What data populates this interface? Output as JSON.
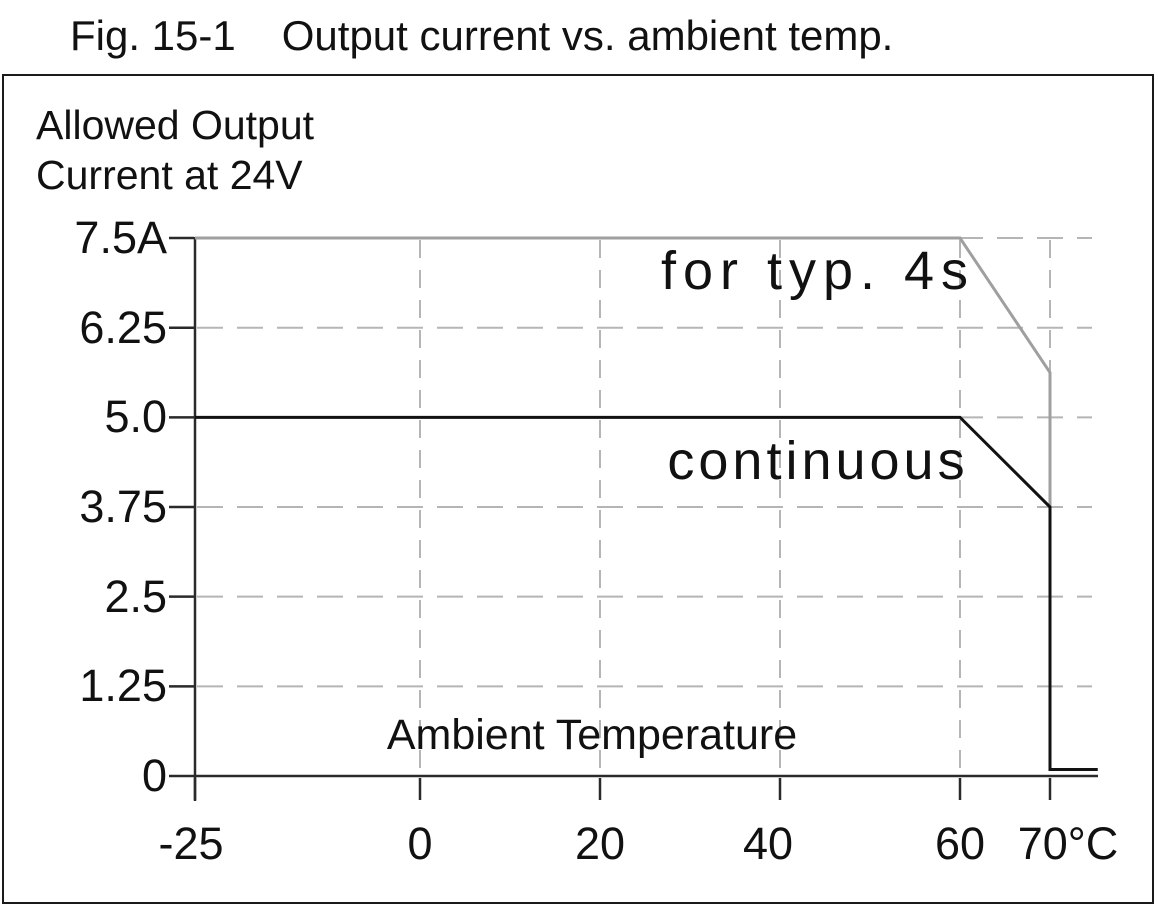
{
  "figure": {
    "fig_label": "Fig. 15-1",
    "title": "Output current vs. ambient temp."
  },
  "chart_data": {
    "type": "line",
    "title": "Fig. 15-1 Output current vs. ambient temp.",
    "ylabel": "Allowed Output Current at 24V",
    "ylabel_lines": [
      "Allowed Output",
      "Current at 24V"
    ],
    "xlabel": "Ambient Temperature",
    "x_unit": "°C",
    "y_unit": "A",
    "xlim": [
      -25,
      75.3
    ],
    "ylim": [
      0,
      7.5
    ],
    "grid": "dashed",
    "legend_position": "inline-labels",
    "y_ticks": [
      {
        "value": 7.5,
        "label": "7.5A"
      },
      {
        "value": 6.25,
        "label": "6.25"
      },
      {
        "value": 5.0,
        "label": "5.0"
      },
      {
        "value": 3.75,
        "label": "3.75"
      },
      {
        "value": 2.5,
        "label": "2.5"
      },
      {
        "value": 1.25,
        "label": "1.25"
      },
      {
        "value": 0,
        "label": "0"
      }
    ],
    "x_ticks": [
      {
        "value": -25,
        "label": "-25"
      },
      {
        "value": 0,
        "label": "0"
      },
      {
        "value": 20,
        "label": "20"
      },
      {
        "value": 40,
        "label": "40"
      },
      {
        "value": 60,
        "label": "60"
      },
      {
        "value": 70,
        "label": "70°C"
      }
    ],
    "gridlines": {
      "horizontal": [
        7.5,
        6.25,
        5.0,
        3.75,
        2.5,
        1.25
      ],
      "vertical": [
        0,
        20,
        40,
        60,
        70
      ]
    },
    "series": [
      {
        "name": "for-typ-4s",
        "label": "for typ. 4s",
        "color": "#9f9f9f",
        "points": [
          [
            -25,
            7.5
          ],
          [
            60,
            7.5
          ],
          [
            70,
            5.625
          ],
          [
            70,
            0.09
          ],
          [
            75.3,
            0.09
          ]
        ]
      },
      {
        "name": "continuous",
        "label": "continuous",
        "color": "#121212",
        "points": [
          [
            -25,
            5.0
          ],
          [
            60,
            5.0
          ],
          [
            70,
            3.75
          ],
          [
            70,
            0.09
          ],
          [
            75.3,
            0.09
          ]
        ]
      }
    ]
  },
  "colors": {
    "axis": "#2a2a2a",
    "gridline": "#b5b5b5",
    "border": "#1a1a1a",
    "text": "#111111",
    "background": "#ffffff"
  }
}
